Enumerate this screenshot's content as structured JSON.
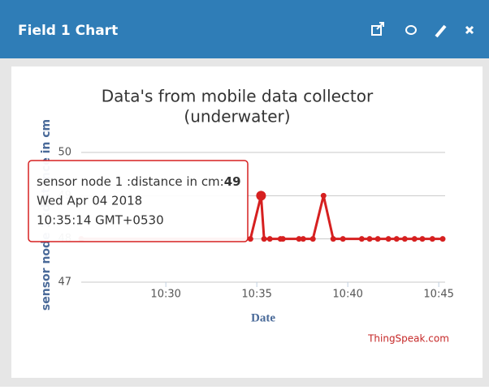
{
  "header": {
    "title": "Field 1 Chart"
  },
  "chart_data": {
    "type": "line",
    "title": "Data's from mobile data collector",
    "subtitle": "(underwater)",
    "y_label": "sensor node 1 :distance in cm",
    "x_label": "Date",
    "credit": "ThingSpeak.com",
    "x": [
      "10:25:21",
      "10:34:39",
      "10:35:14",
      "10:35:24",
      "10:35:43",
      "10:36:18",
      "10:36:26",
      "10:37:19",
      "10:37:33",
      "10:38:05",
      "10:38:40",
      "10:39:12",
      "10:39:44",
      "10:40:46",
      "10:41:12",
      "10:41:39",
      "10:42:14",
      "10:42:41",
      "10:43:08",
      "10:43:40",
      "10:44:06",
      "10:44:39",
      "10:45:13"
    ],
    "values": [
      48,
      48,
      49,
      48,
      48,
      48,
      48,
      48,
      48,
      48,
      49,
      48,
      48,
      48,
      48,
      48,
      48,
      48,
      48,
      48,
      48,
      48,
      48
    ],
    "color": "#d62020",
    "xlim": [
      "10:25:21",
      "10:45:13"
    ],
    "xticks": [
      "10:30",
      "10:35",
      "10:40",
      "10:45"
    ],
    "ylim": [
      47,
      50
    ],
    "yticks": [
      47,
      48,
      49,
      50
    ],
    "grid": true,
    "tooltip": {
      "label": "sensor node 1 :distance in cm:",
      "date": "Wed Apr 04 2018",
      "time": "10:35:14 GMT+0530"
    }
  }
}
